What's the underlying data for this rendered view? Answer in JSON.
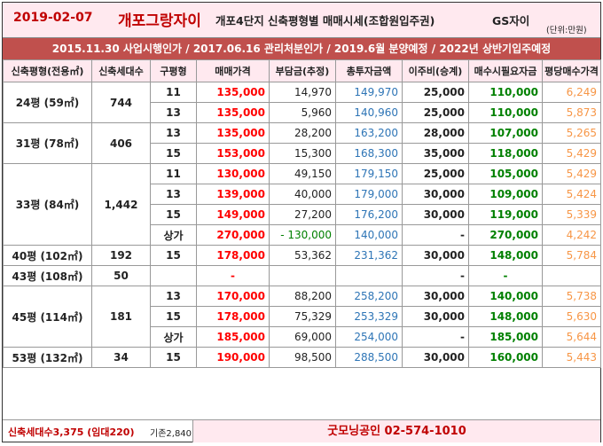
{
  "header": {
    "date": "2019-02-07",
    "complex_name": "개포그랑자이",
    "description": "개포4단지 신축평형별 매매시세(조합원입주권)",
    "brand": "GS자이",
    "unit": "(단위:만원)"
  },
  "subheader": {
    "text": "2015.11.30 사업시행인가 / 2017.06.16 관리처분인가 / 2019.6월 분양예정 / 2022년 상반기입주예정"
  },
  "columns": [
    "신축평형(전용㎡)",
    "신축세대수",
    "구평형",
    "매매가격",
    "부담금(추정)",
    "총투자금액",
    "이주비(승계)",
    "매수시필요자금",
    "평당매수가격"
  ],
  "groups": [
    {
      "size": "24평 (59㎡)",
      "units": "744",
      "rows": [
        {
          "old": "11",
          "price": "135,000",
          "levy": "14,970",
          "total": "149,970",
          "relocation": "25,000",
          "needed": "110,000",
          "per_pyeong": "6,249"
        },
        {
          "old": "13",
          "price": "135,000",
          "levy": "5,960",
          "total": "140,960",
          "relocation": "25,000",
          "needed": "110,000",
          "per_pyeong": "5,873"
        }
      ]
    },
    {
      "size": "31평 (78㎡)",
      "units": "406",
      "rows": [
        {
          "old": "13",
          "price": "135,000",
          "levy": "28,200",
          "total": "163,200",
          "relocation": "28,000",
          "needed": "107,000",
          "per_pyeong": "5,265"
        },
        {
          "old": "15",
          "price": "153,000",
          "levy": "15,300",
          "total": "168,300",
          "relocation": "35,000",
          "needed": "118,000",
          "per_pyeong": "5,429"
        }
      ]
    },
    {
      "size": "33평 (84㎡)",
      "units": "1,442",
      "rows": [
        {
          "old": "11",
          "price": "130,000",
          "levy": "49,150",
          "total": "179,150",
          "relocation": "25,000",
          "needed": "105,000",
          "per_pyeong": "5,429"
        },
        {
          "old": "13",
          "price": "139,000",
          "levy": "40,000",
          "total": "179,000",
          "relocation": "30,000",
          "needed": "109,000",
          "per_pyeong": "5,424"
        },
        {
          "old": "15",
          "price": "149,000",
          "levy": "27,200",
          "total": "176,200",
          "relocation": "30,000",
          "needed": "119,000",
          "per_pyeong": "5,339"
        },
        {
          "old": "상가",
          "price": "270,000",
          "levy": "- 130,000",
          "total": "140,000",
          "relocation": "-",
          "needed": "270,000",
          "per_pyeong": "4,242"
        }
      ]
    },
    {
      "size": "40평 (102㎡)",
      "units": "192",
      "rows": [
        {
          "old": "15",
          "price": "178,000",
          "levy": "53,362",
          "total": "231,362",
          "relocation": "30,000",
          "needed": "148,000",
          "per_pyeong": "5,784"
        }
      ]
    },
    {
      "size": "43평 (108㎡)",
      "units": "50",
      "rows": [
        {
          "old": "",
          "price": "-",
          "levy": "",
          "total": "",
          "relocation": "-",
          "needed": "-",
          "per_pyeong": ""
        }
      ]
    },
    {
      "size": "45평 (114㎡)",
      "units": "181",
      "rows": [
        {
          "old": "13",
          "price": "170,000",
          "levy": "88,200",
          "total": "258,200",
          "relocation": "30,000",
          "needed": "140,000",
          "per_pyeong": "5,738"
        },
        {
          "old": "15",
          "price": "178,000",
          "levy": "75,329",
          "total": "253,329",
          "relocation": "30,000",
          "needed": "148,000",
          "per_pyeong": "5,630"
        },
        {
          "old": "상가",
          "price": "185,000",
          "levy": "69,000",
          "total": "254,000",
          "relocation": "-",
          "needed": "185,000",
          "per_pyeong": "5,644"
        }
      ]
    },
    {
      "size": "53평 (132㎡)",
      "units": "34",
      "rows": [
        {
          "old": "15",
          "price": "190,000",
          "levy": "98,500",
          "total": "288,500",
          "relocation": "30,000",
          "needed": "160,000",
          "per_pyeong": "5,443"
        }
      ]
    }
  ],
  "footer": {
    "total_units": "신축세대수3,375 (임대220)",
    "existing": "기존2,840",
    "agency": "굿모닝공인 02-574-1010"
  },
  "colors": {
    "price": "#ff0000",
    "total": "#2e75b6",
    "needed": "#008000",
    "per_pyeong": "#f79646",
    "header_bar": "#c0504d"
  }
}
